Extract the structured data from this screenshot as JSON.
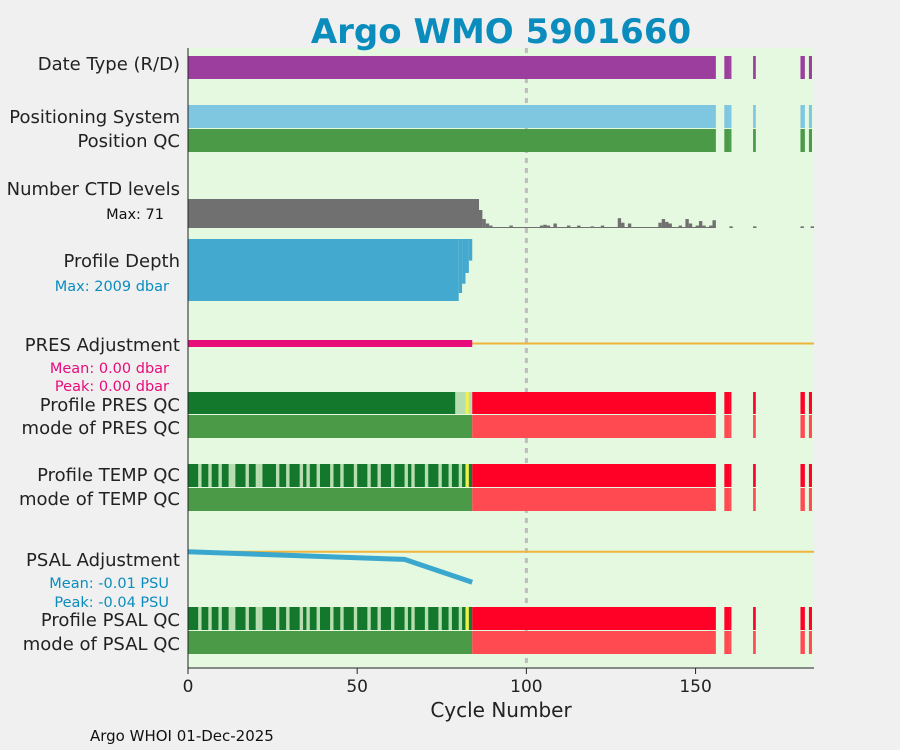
{
  "chart_data": {
    "type": "bar",
    "title": "Argo WMO 5901660",
    "xlabel": "Cycle Number",
    "xlim": [
      0,
      185
    ],
    "xticks": [
      0,
      50,
      100,
      150
    ],
    "vline_x": 100,
    "footer": "Argo WHOI 01-Dec-2025",
    "colors": {
      "title": "#0a8cbd",
      "background": "#e5f8e0",
      "purple": "#9c3e9d",
      "lightblue": "#7fc6e0",
      "green": "#4a9a48",
      "darkgreen": "#13782c",
      "lightgreen": "#b7ddb1",
      "yellow": "#f0f04a",
      "red": "#ff0026",
      "lightred": "#ff4a52",
      "gray": "#707070",
      "depth": "#44a9cf",
      "pink": "#e80b7a",
      "orange": "#f0b43c",
      "psal": "#3aa7cf"
    },
    "labels": {
      "date_type": "Date Type (R/D)",
      "positioning": "Positioning System",
      "position_qc": "Position QC",
      "ctd_levels": "Number CTD levels",
      "ctd_max": "Max: 71",
      "profile_depth": "Profile Depth",
      "depth_max": "Max: 2009 dbar",
      "pres_adj": "PRES Adjustment",
      "pres_mean": "Mean: 0.00 dbar",
      "pres_peak": "Peak: 0.00 dbar",
      "pres_qc": "Profile PRES QC",
      "pres_mode": "mode of PRES QC",
      "temp_qc": "Profile TEMP QC",
      "temp_mode": "mode of TEMP QC",
      "psal_adj": "PSAL Adjustment",
      "psal_mean": "Mean: -0.01 PSU",
      "psal_peak": "Peak: -0.04 PSU",
      "psal_qc": "Profile PSAL QC",
      "psal_mode": "mode of PSAL QC"
    },
    "profiles": {
      "main_range": [
        0,
        156
      ],
      "extra_cycles": [
        158.5,
        160,
        167,
        181,
        183.5
      ],
      "extra_widths": [
        1.5,
        0.6,
        0.8,
        1.3,
        0.9
      ]
    },
    "ctd_levels": {
      "max": 71,
      "full_range": [
        0,
        86
      ],
      "full_value": 71,
      "taper": [
        [
          86,
          44
        ],
        [
          87,
          22
        ],
        [
          88,
          11
        ],
        [
          89,
          6
        ]
      ],
      "spikes": [
        [
          95,
          6
        ],
        [
          104,
          6
        ],
        [
          105,
          8
        ],
        [
          106,
          6
        ],
        [
          108,
          11
        ],
        [
          112,
          6
        ],
        [
          115,
          6
        ],
        [
          119,
          4
        ],
        [
          122,
          6
        ],
        [
          127,
          24
        ],
        [
          128,
          13
        ],
        [
          130,
          11
        ],
        [
          139,
          13
        ],
        [
          140,
          22
        ],
        [
          141,
          15
        ],
        [
          142,
          11
        ],
        [
          145,
          6
        ],
        [
          147,
          22
        ],
        [
          148,
          11
        ],
        [
          150,
          6
        ],
        [
          151,
          17
        ],
        [
          152,
          6
        ],
        [
          154,
          6
        ],
        [
          155,
          19
        ],
        [
          160,
          4
        ],
        [
          167,
          4
        ],
        [
          181,
          4
        ],
        [
          184,
          4
        ]
      ]
    },
    "profile_depth": {
      "max_dbar": 2009,
      "segments": [
        [
          0,
          80,
          2009
        ],
        [
          80,
          81,
          1750
        ],
        [
          81,
          82,
          1450
        ],
        [
          82,
          83,
          1100
        ],
        [
          83,
          84,
          700
        ]
      ]
    },
    "pres_adjustment": {
      "mean": 0.0,
      "peak": 0.0,
      "adjusted_range": [
        0,
        84
      ],
      "zero_line_end": 185
    },
    "psal_adjustment": {
      "mean": -0.01,
      "peak": -0.04,
      "x": [
        0,
        64,
        84
      ],
      "y": [
        0.0,
        -0.01,
        -0.04
      ],
      "ylim": [
        -0.045,
        0.005
      ],
      "zero_line_end": 185
    },
    "qc": {
      "pres_profile": [
        [
          0,
          79,
          "darkgreen"
        ],
        [
          79,
          82,
          "lightgreen"
        ],
        [
          82,
          83,
          "yellow"
        ],
        [
          83,
          84,
          "lightgreen"
        ],
        [
          84,
          156,
          "red"
        ]
      ],
      "pres_mode": [
        [
          0,
          84,
          "green"
        ],
        [
          84,
          156,
          "lightred"
        ]
      ],
      "temp_mode": [
        [
          0,
          84,
          "green"
        ],
        [
          84,
          156,
          "lightred"
        ]
      ],
      "psal_mode": [
        [
          0,
          84,
          "green"
        ],
        [
          84,
          156,
          "lightred"
        ]
      ],
      "temp_light_cycles": [
        3,
        6,
        9,
        12,
        13,
        17,
        20,
        21,
        26,
        29,
        33,
        35,
        38,
        42,
        45,
        49,
        53,
        56,
        60,
        64,
        66,
        70,
        74,
        77,
        80
      ],
      "psal_light_cycles": [
        3,
        6,
        9,
        12,
        13,
        17,
        20,
        21,
        26,
        29,
        33,
        35,
        38,
        42,
        45,
        49,
        53,
        56,
        60,
        64,
        66,
        70,
        74,
        77,
        80
      ],
      "yellow_cycle": 82,
      "bad_from": 84
    }
  }
}
